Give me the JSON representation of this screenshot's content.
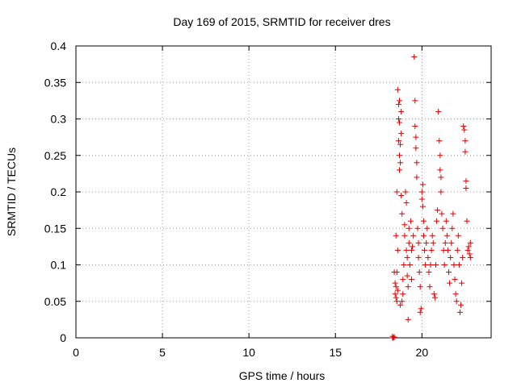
{
  "chart_data": {
    "type": "scatter",
    "title": "Day 169 of 2015, SRMTID for receiver dres",
    "xlabel": "GPS time / hours",
    "ylabel": "SRMTID / TECUs",
    "xlim": [
      0,
      24
    ],
    "ylim": [
      0,
      0.4
    ],
    "x_ticks": [
      0,
      5,
      10,
      15,
      20
    ],
    "x_tick_labels": [
      "0",
      "5",
      "10",
      "15",
      "20"
    ],
    "y_ticks": [
      0,
      0.05,
      0.1,
      0.15,
      0.2,
      0.25,
      0.3,
      0.35,
      0.4
    ],
    "y_tick_labels": [
      "0",
      "0.05",
      "0.1",
      "0.15",
      "0.2",
      "0.25",
      "0.3",
      "0.35",
      "0.4"
    ],
    "grid": true,
    "marker": "plus",
    "color": "#e00000",
    "series": [
      {
        "points": [
          [
            18.3,
            0.0
          ],
          [
            18.3,
            0.002
          ],
          [
            18.35,
            0.0
          ],
          [
            18.4,
            0.001
          ],
          [
            18.4,
            0.09
          ],
          [
            18.45,
            0.06
          ],
          [
            18.45,
            0.075
          ],
          [
            18.5,
            0.055
          ],
          [
            18.5,
            0.07
          ],
          [
            18.55,
            0.05
          ],
          [
            18.55,
            0.09
          ],
          [
            18.6,
            0.065
          ],
          [
            18.5,
            0.14
          ],
          [
            18.55,
            0.2
          ],
          [
            18.6,
            0.12
          ],
          [
            18.6,
            0.34
          ],
          [
            18.65,
            0.32
          ],
          [
            18.65,
            0.3
          ],
          [
            18.7,
            0.295
          ],
          [
            18.7,
            0.325
          ],
          [
            18.65,
            0.27
          ],
          [
            18.7,
            0.25
          ],
          [
            18.75,
            0.24
          ],
          [
            18.75,
            0.265
          ],
          [
            18.7,
            0.23
          ],
          [
            18.8,
            0.31
          ],
          [
            18.8,
            0.28
          ],
          [
            18.8,
            0.195
          ],
          [
            18.85,
            0.17
          ],
          [
            18.75,
            0.045
          ],
          [
            18.85,
            0.05
          ],
          [
            18.9,
            0.06
          ],
          [
            18.9,
            0.08
          ],
          [
            18.95,
            0.1
          ],
          [
            19.0,
            0.14
          ],
          [
            19.0,
            0.155
          ],
          [
            19.05,
            0.2
          ],
          [
            19.1,
            0.185
          ],
          [
            19.1,
            0.12
          ],
          [
            19.15,
            0.11
          ],
          [
            19.15,
            0.085
          ],
          [
            19.2,
            0.025
          ],
          [
            19.2,
            0.07
          ],
          [
            19.25,
            0.13
          ],
          [
            19.25,
            0.15
          ],
          [
            19.3,
            0.1
          ],
          [
            19.35,
            0.16
          ],
          [
            19.4,
            0.12
          ],
          [
            19.4,
            0.08
          ],
          [
            19.45,
            0.125
          ],
          [
            19.5,
            0.14
          ],
          [
            19.55,
            0.385
          ],
          [
            19.6,
            0.325
          ],
          [
            19.6,
            0.29
          ],
          [
            19.65,
            0.275
          ],
          [
            19.65,
            0.26
          ],
          [
            19.7,
            0.24
          ],
          [
            19.7,
            0.22
          ],
          [
            19.75,
            0.15
          ],
          [
            19.8,
            0.13
          ],
          [
            19.8,
            0.11
          ],
          [
            19.85,
            0.09
          ],
          [
            19.9,
            0.07
          ],
          [
            19.9,
            0.035
          ],
          [
            19.95,
            0.04
          ],
          [
            20.0,
            0.2
          ],
          [
            20.0,
            0.19
          ],
          [
            20.05,
            0.21
          ],
          [
            20.05,
            0.18
          ],
          [
            20.1,
            0.16
          ],
          [
            20.1,
            0.14
          ],
          [
            20.15,
            0.12
          ],
          [
            20.2,
            0.1
          ],
          [
            20.25,
            0.13
          ],
          [
            20.3,
            0.15
          ],
          [
            20.35,
            0.11
          ],
          [
            20.4,
            0.09
          ],
          [
            20.45,
            0.07
          ],
          [
            20.5,
            0.1
          ],
          [
            20.55,
            0.12
          ],
          [
            20.6,
            0.14
          ],
          [
            20.65,
            0.13
          ],
          [
            20.7,
            0.06
          ],
          [
            20.75,
            0.055
          ],
          [
            20.8,
            0.1
          ],
          [
            20.85,
            0.16
          ],
          [
            20.9,
            0.175
          ],
          [
            20.95,
            0.31
          ],
          [
            21.0,
            0.27
          ],
          [
            21.05,
            0.25
          ],
          [
            21.05,
            0.23
          ],
          [
            21.1,
            0.22
          ],
          [
            21.1,
            0.2
          ],
          [
            21.15,
            0.17
          ],
          [
            21.2,
            0.15
          ],
          [
            21.25,
            0.12
          ],
          [
            21.3,
            0.1
          ],
          [
            21.35,
            0.13
          ],
          [
            21.4,
            0.16
          ],
          [
            21.45,
            0.14
          ],
          [
            21.5,
            0.12
          ],
          [
            21.55,
            0.09
          ],
          [
            21.6,
            0.075
          ],
          [
            21.65,
            0.11
          ],
          [
            21.7,
            0.13
          ],
          [
            21.75,
            0.15
          ],
          [
            21.8,
            0.17
          ],
          [
            21.85,
            0.1
          ],
          [
            21.9,
            0.08
          ],
          [
            21.95,
            0.06
          ],
          [
            22.0,
            0.05
          ],
          [
            22.05,
            0.12
          ],
          [
            22.1,
            0.14
          ],
          [
            22.15,
            0.1
          ],
          [
            22.2,
            0.035
          ],
          [
            22.25,
            0.045
          ],
          [
            22.3,
            0.075
          ],
          [
            22.35,
            0.11
          ],
          [
            22.4,
            0.29
          ],
          [
            22.45,
            0.285
          ],
          [
            22.5,
            0.27
          ],
          [
            22.5,
            0.255
          ],
          [
            22.55,
            0.215
          ],
          [
            22.55,
            0.205
          ],
          [
            22.6,
            0.16
          ],
          [
            22.65,
            0.12
          ],
          [
            22.7,
            0.125
          ],
          [
            22.75,
            0.115
          ],
          [
            22.8,
            0.11
          ],
          [
            22.8,
            0.13
          ]
        ]
      }
    ]
  }
}
